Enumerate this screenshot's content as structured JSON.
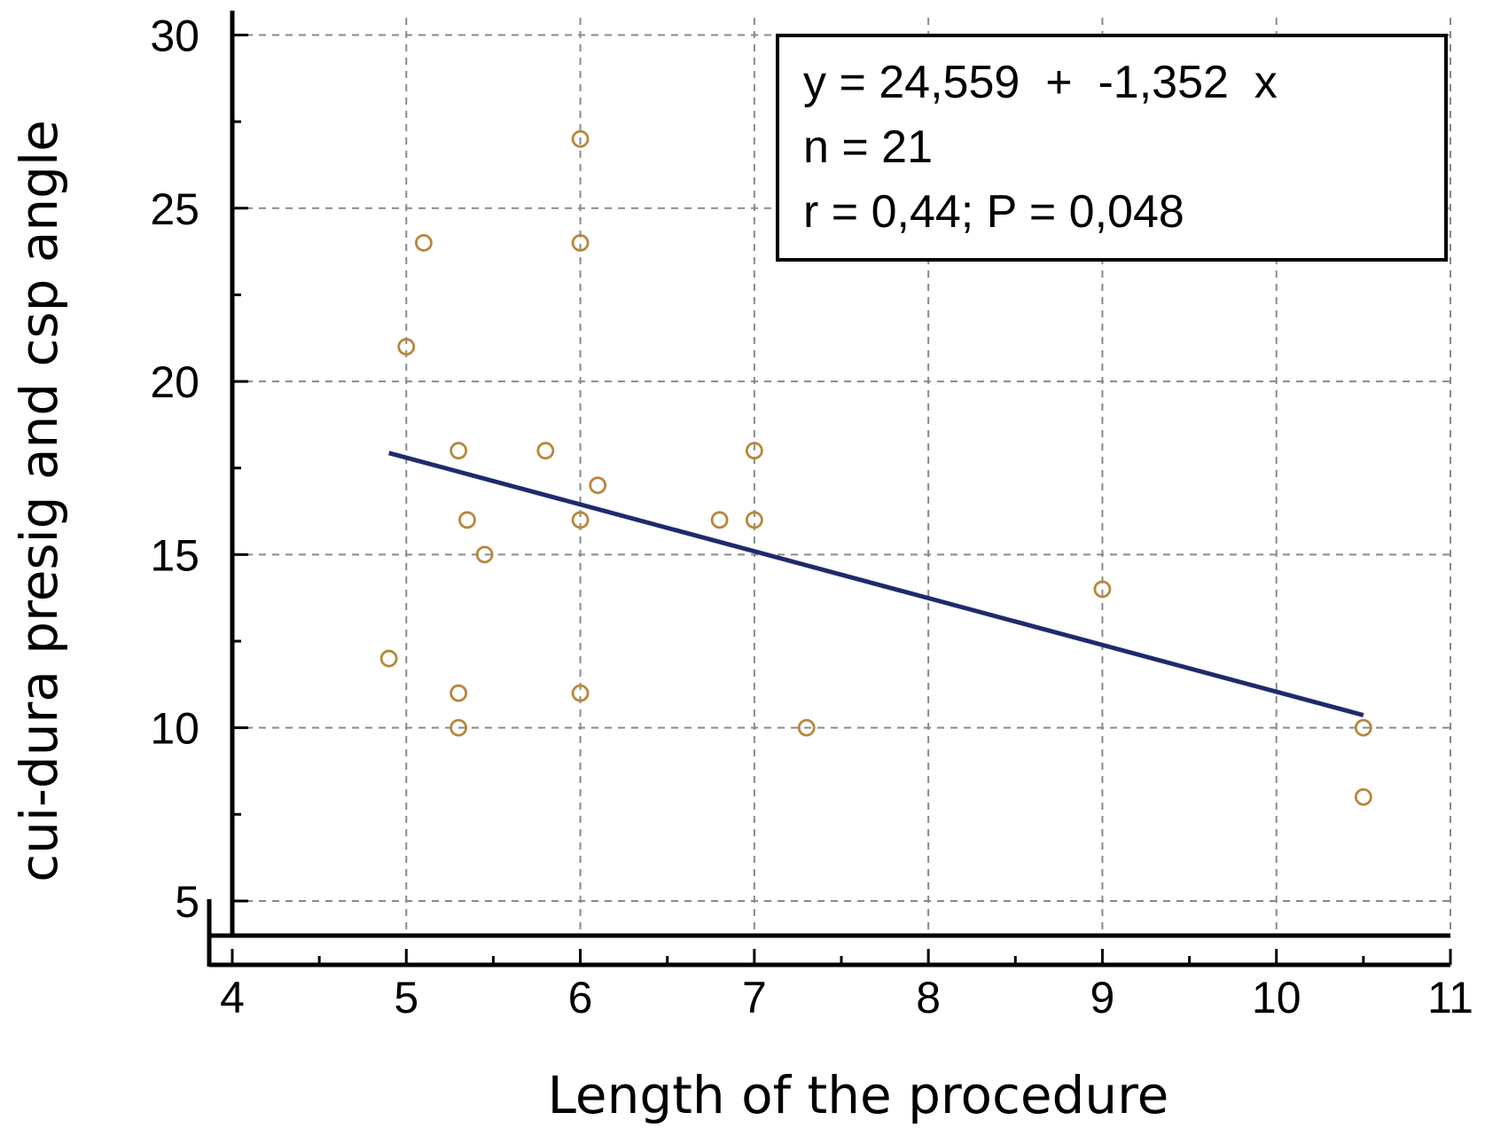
{
  "chart_data": {
    "type": "scatter",
    "xlabel": "Length of the procedure",
    "ylabel": "cui-dura presig and csp angle",
    "xlim": [
      4,
      11
    ],
    "ylim": [
      4,
      30.5
    ],
    "x_ticks": [
      "4",
      "5",
      "6",
      "7",
      "8",
      "9",
      "10",
      "11"
    ],
    "y_ticks": [
      "5",
      "10",
      "15",
      "20",
      "25",
      "30"
    ],
    "grid": true,
    "points": [
      {
        "x": 6.0,
        "y": 27
      },
      {
        "x": 6.0,
        "y": 24
      },
      {
        "x": 5.1,
        "y": 24
      },
      {
        "x": 5.0,
        "y": 21
      },
      {
        "x": 5.3,
        "y": 18
      },
      {
        "x": 5.8,
        "y": 18
      },
      {
        "x": 7.0,
        "y": 18
      },
      {
        "x": 6.1,
        "y": 17
      },
      {
        "x": 5.35,
        "y": 16
      },
      {
        "x": 6.0,
        "y": 16
      },
      {
        "x": 6.8,
        "y": 16
      },
      {
        "x": 7.0,
        "y": 16
      },
      {
        "x": 5.45,
        "y": 15
      },
      {
        "x": 9.0,
        "y": 14
      },
      {
        "x": 4.9,
        "y": 12
      },
      {
        "x": 5.3,
        "y": 11
      },
      {
        "x": 6.0,
        "y": 11
      },
      {
        "x": 5.3,
        "y": 10
      },
      {
        "x": 7.3,
        "y": 10
      },
      {
        "x": 10.5,
        "y": 10
      },
      {
        "x": 10.5,
        "y": 8
      }
    ],
    "regression": {
      "intercept": 24.559,
      "slope": -1.352,
      "x_range": [
        4.9,
        10.5
      ]
    },
    "stats_box": {
      "placement": "top-right",
      "line1": "y = 24,559  +  -1,352  x",
      "line2": "n = 21",
      "line3": "r = 0,44; P = 0,048"
    },
    "colors": {
      "points": "#b8863c",
      "line": "#1f2a6e",
      "grid": "#8a8a8a"
    }
  }
}
